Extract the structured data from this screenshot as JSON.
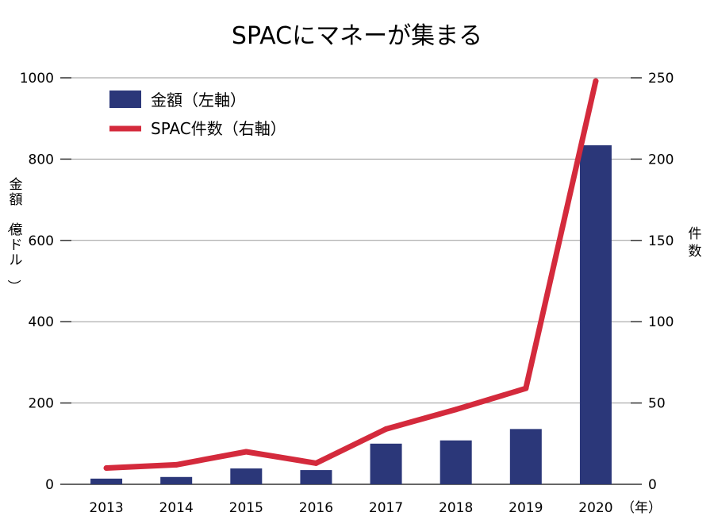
{
  "chart_data": {
    "type": "bar",
    "title": "SPACにマネーが集まる",
    "categories": [
      "2013",
      "2014",
      "2015",
      "2016",
      "2017",
      "2018",
      "2019",
      "2020"
    ],
    "x_unit": "（年）",
    "series": [
      {
        "name": "金額（左軸）",
        "type": "bar",
        "axis": "left",
        "color": "#2b3779",
        "values": [
          14,
          18,
          39,
          35,
          100,
          108,
          136,
          834
        ]
      },
      {
        "name": "SPAC件数（右軸）",
        "type": "line",
        "axis": "right",
        "color": "#d42a3c",
        "values": [
          10,
          12,
          20,
          13,
          34,
          46,
          59,
          248
        ]
      }
    ],
    "y_left": {
      "label": "金額（億ドル）",
      "ylim": [
        0,
        1000
      ],
      "ticks": [
        0,
        200,
        400,
        600,
        800,
        1000
      ]
    },
    "y_right": {
      "label": "件数",
      "ylim": [
        0,
        250
      ],
      "ticks": [
        0,
        50,
        100,
        150,
        200,
        250
      ]
    },
    "grid": true,
    "legend": "top-left"
  }
}
